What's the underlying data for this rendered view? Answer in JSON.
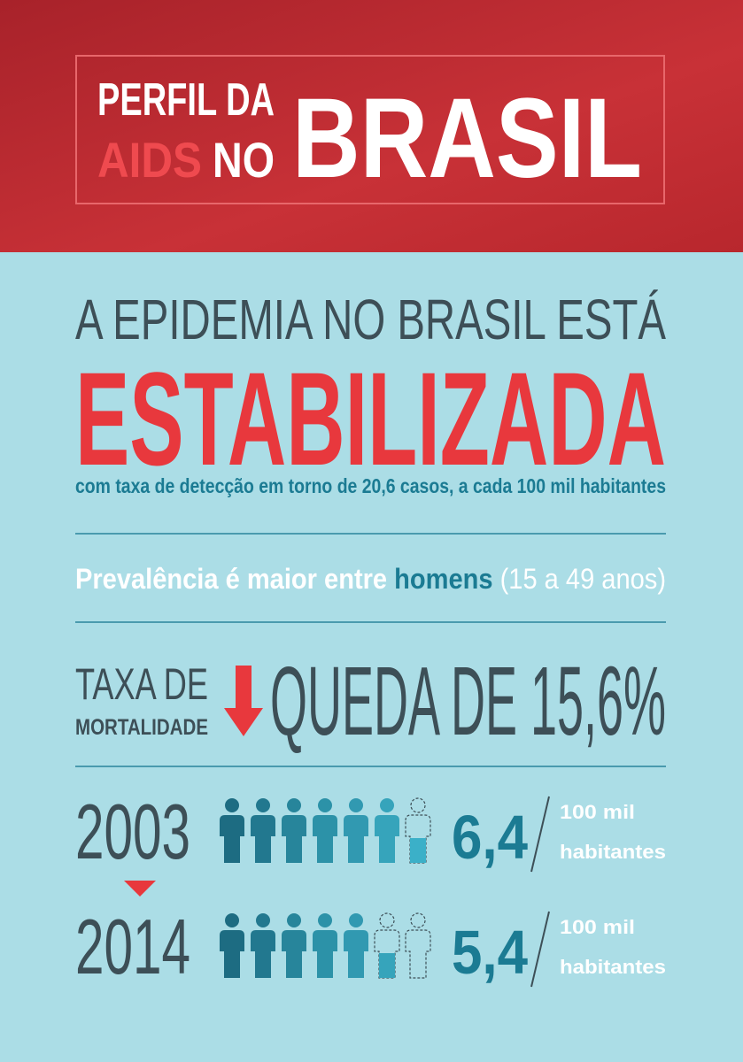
{
  "header": {
    "line1": "PERFIL DA",
    "aids": "AIDS",
    "no": "NO",
    "brasil": "BRASIL"
  },
  "headline": {
    "line1": "A EPIDEMIA NO BRASIL ESTÁ",
    "highlight": "ESTABILIZADA",
    "subtitle": "com taxa de detecção em torno de 20,6 casos, a cada 100 mil habitantes"
  },
  "prevalence": {
    "before": "Prevalência é maior entre ",
    "highlight": "homens",
    "after": " (15 a 49 anos)"
  },
  "mortality": {
    "label1": "TAXA DE",
    "label2": "MORTALIDADE",
    "text": "QUEDA DE 15,6%"
  },
  "rows": [
    {
      "year": "2003",
      "value": 6.4,
      "value_label": "6,4",
      "unit_top": "100 mil",
      "unit_bottom": "habitantes"
    },
    {
      "year": "2014",
      "value": 5.4,
      "value_label": "5,4",
      "unit_top": "100 mil",
      "unit_bottom": "habitantes"
    }
  ]
}
